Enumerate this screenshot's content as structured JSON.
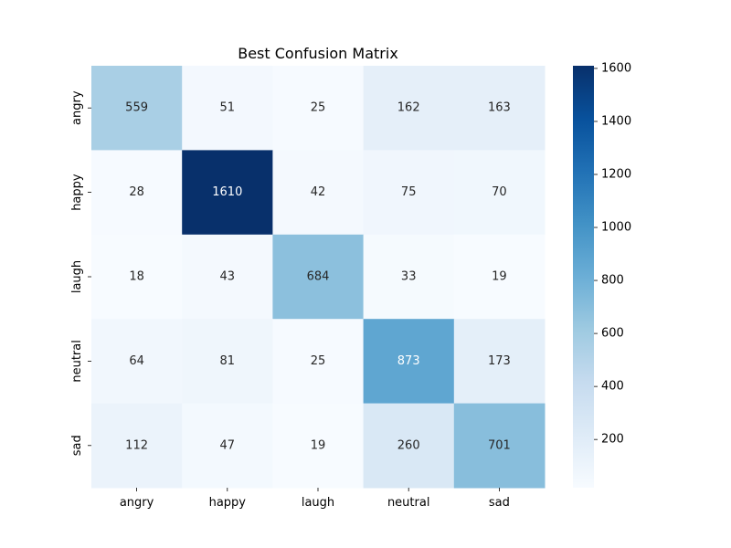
{
  "chart_data": {
    "type": "heatmap",
    "title": "Best Confusion Matrix",
    "xlabel": "",
    "ylabel": "",
    "x_categories": [
      "angry",
      "happy",
      "laugh",
      "neutral",
      "sad"
    ],
    "y_categories": [
      "angry",
      "happy",
      "laugh",
      "neutral",
      "sad"
    ],
    "values": [
      [
        559,
        51,
        25,
        162,
        163
      ],
      [
        28,
        1610,
        42,
        75,
        70
      ],
      [
        18,
        43,
        684,
        33,
        19
      ],
      [
        64,
        81,
        25,
        873,
        173
      ],
      [
        112,
        47,
        19,
        260,
        701
      ]
    ],
    "colormap": "Blues",
    "colormap_stops": [
      "#f7fbff",
      "#deebf7",
      "#c6dbef",
      "#9ecae1",
      "#6baed6",
      "#4292c6",
      "#2171b5",
      "#08519c",
      "#08306b"
    ],
    "value_range": [
      18,
      1610
    ],
    "colorbar_ticks": [
      200,
      400,
      600,
      800,
      1000,
      1200,
      1400,
      1600
    ],
    "annotation_colors": {
      "dark": "#262626",
      "light": "#ffffff"
    },
    "grid": false
  }
}
